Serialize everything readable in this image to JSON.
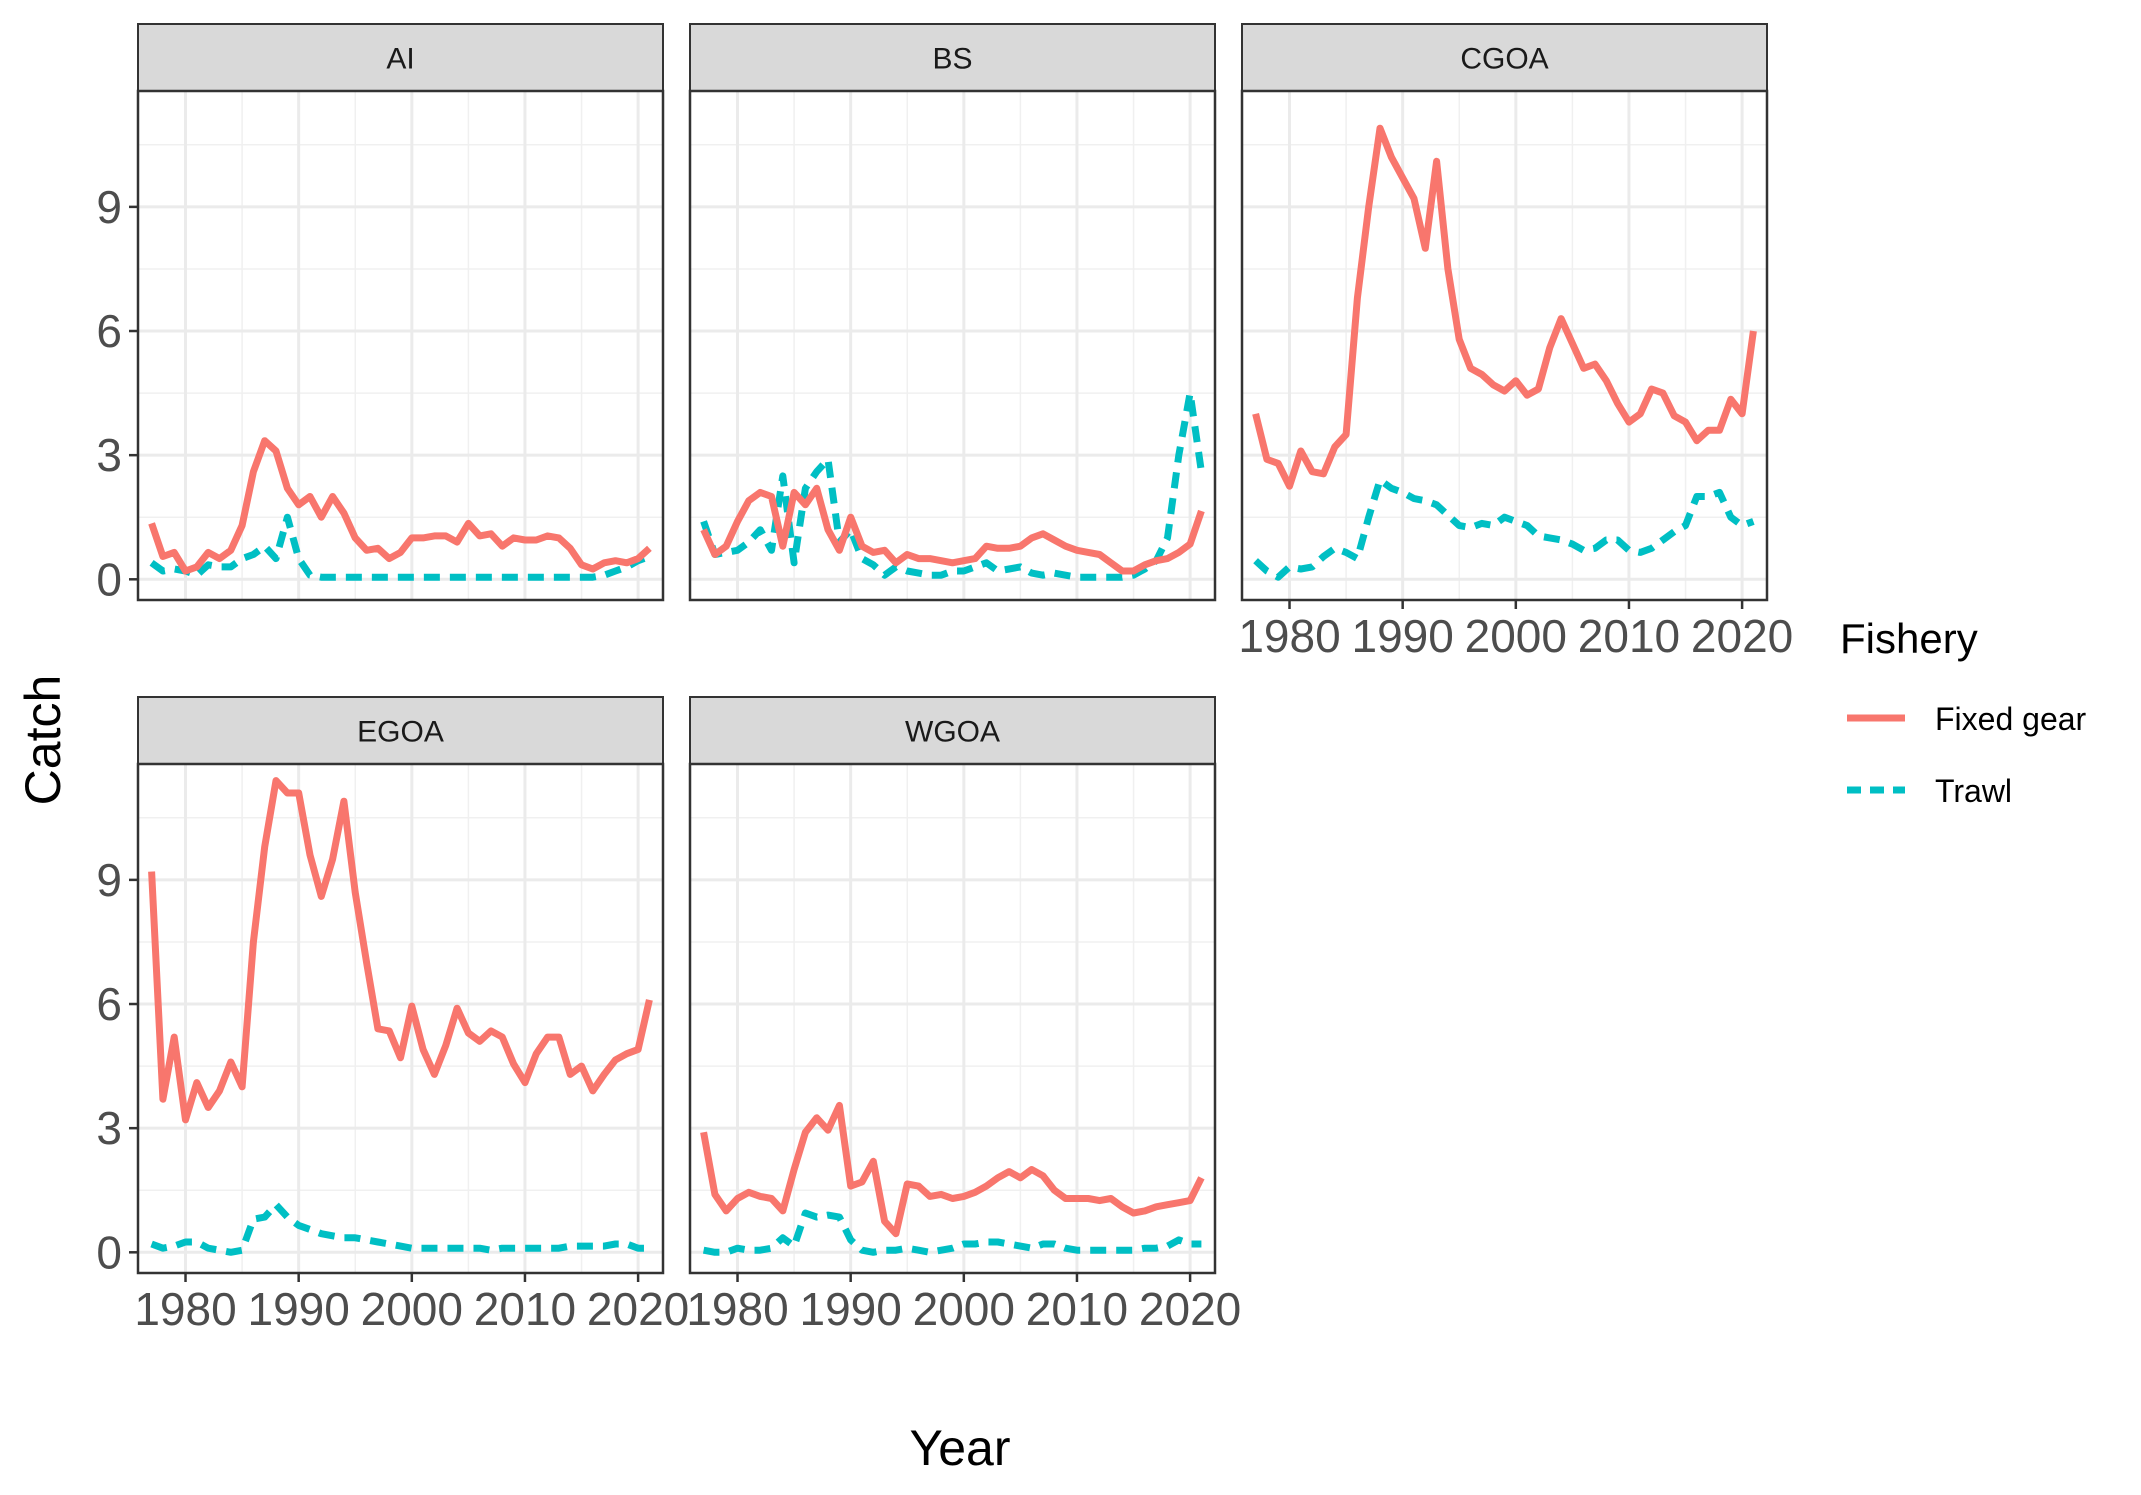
{
  "chart_data": {
    "type": "line",
    "layout": "facet-grid",
    "xlabel": "Year",
    "ylabel": "Catch",
    "xlim": [
      1975.8,
      2022.2
    ],
    "ylim": [
      -0.5,
      11.8
    ],
    "x_ticks": [
      1980,
      1990,
      2000,
      2010,
      2020
    ],
    "y_ticks": [
      0,
      3,
      6,
      9
    ],
    "grid": "on",
    "legend": {
      "title": "Fishery",
      "position": "right",
      "entries": [
        {
          "name": "Fixed gear",
          "color": "#F8766D",
          "dash": "solid"
        },
        {
          "name": "Trawl",
          "color": "#00BFC4",
          "dash": "dashed"
        }
      ]
    },
    "series_styles": {
      "fixed": {
        "color": "#F8766D",
        "dash": "solid"
      },
      "trawl": {
        "color": "#00BFC4",
        "dash": "dashed"
      }
    },
    "panels": [
      {
        "region": "AI",
        "x": [
          1977,
          1978,
          1979,
          1980,
          1981,
          1982,
          1983,
          1984,
          1985,
          1986,
          1987,
          1988,
          1989,
          1990,
          1991,
          1992,
          1993,
          1994,
          1995,
          1996,
          1997,
          1998,
          1999,
          2000,
          2001,
          2002,
          2003,
          2004,
          2005,
          2006,
          2007,
          2008,
          2009,
          2010,
          2011,
          2012,
          2013,
          2014,
          2015,
          2016,
          2017,
          2018,
          2019,
          2020,
          2021
        ],
        "fixed": [
          1.35,
          0.55,
          0.65,
          0.2,
          0.3,
          0.65,
          0.5,
          0.7,
          1.3,
          2.6,
          3.35,
          3.1,
          2.2,
          1.8,
          2.0,
          1.5,
          2.0,
          1.6,
          1.0,
          0.7,
          0.75,
          0.5,
          0.65,
          1.0,
          1.0,
          1.05,
          1.05,
          0.9,
          1.35,
          1.05,
          1.1,
          0.8,
          1.0,
          0.95,
          0.95,
          1.05,
          1.0,
          0.75,
          0.35,
          0.25,
          0.4,
          0.45,
          0.4,
          0.5,
          0.75
        ],
        "trawl": [
          0.4,
          0.2,
          0.25,
          0.2,
          0.1,
          0.35,
          0.3,
          0.3,
          0.5,
          0.6,
          0.8,
          0.5,
          1.5,
          0.5,
          0.1,
          0.05,
          0.05,
          0.05,
          0.05,
          0.05,
          0.05,
          0.05,
          0.05,
          0.05,
          0.05,
          0.05,
          0.05,
          0.05,
          0.05,
          0.05,
          0.05,
          0.05,
          0.05,
          0.05,
          0.05,
          0.05,
          0.05,
          0.05,
          0.05,
          0.05,
          0.1,
          0.2,
          0.3,
          0.45,
          0.55
        ]
      },
      {
        "region": "BS",
        "x": [
          1977,
          1978,
          1979,
          1980,
          1981,
          1982,
          1983,
          1984,
          1985,
          1986,
          1987,
          1988,
          1989,
          1990,
          1991,
          1992,
          1993,
          1994,
          1995,
          1996,
          1997,
          1998,
          1999,
          2000,
          2001,
          2002,
          2003,
          2004,
          2005,
          2006,
          2007,
          2008,
          2009,
          2010,
          2011,
          2012,
          2013,
          2014,
          2015,
          2016,
          2017,
          2018,
          2019,
          2020,
          2021
        ],
        "fixed": [
          1.2,
          0.6,
          0.8,
          1.4,
          1.9,
          2.1,
          2.0,
          0.8,
          2.1,
          1.8,
          2.2,
          1.2,
          0.7,
          1.5,
          0.8,
          0.65,
          0.7,
          0.4,
          0.6,
          0.5,
          0.5,
          0.45,
          0.4,
          0.45,
          0.5,
          0.8,
          0.75,
          0.75,
          0.8,
          1.0,
          1.1,
          0.95,
          0.8,
          0.7,
          0.65,
          0.6,
          0.4,
          0.2,
          0.2,
          0.35,
          0.45,
          0.5,
          0.65,
          0.85,
          1.65
        ],
        "trawl": [
          1.4,
          0.6,
          0.65,
          0.7,
          0.9,
          1.2,
          0.7,
          2.5,
          0.4,
          2.2,
          2.6,
          2.9,
          0.9,
          1.2,
          0.5,
          0.35,
          0.1,
          0.3,
          0.2,
          0.15,
          0.1,
          0.1,
          0.2,
          0.2,
          0.3,
          0.4,
          0.2,
          0.25,
          0.3,
          0.15,
          0.1,
          0.15,
          0.1,
          0.05,
          0.05,
          0.05,
          0.05,
          0.05,
          0.1,
          0.25,
          0.45,
          1.0,
          3.0,
          4.5,
          2.6
        ]
      },
      {
        "region": "CGOA",
        "x": [
          1977,
          1978,
          1979,
          1980,
          1981,
          1982,
          1983,
          1984,
          1985,
          1986,
          1987,
          1988,
          1989,
          1990,
          1991,
          1992,
          1993,
          1994,
          1995,
          1996,
          1997,
          1998,
          1999,
          2000,
          2001,
          2002,
          2003,
          2004,
          2005,
          2006,
          2007,
          2008,
          2009,
          2010,
          2011,
          2012,
          2013,
          2014,
          2015,
          2016,
          2017,
          2018,
          2019,
          2020,
          2021
        ],
        "fixed": [
          4.0,
          2.9,
          2.8,
          2.25,
          3.1,
          2.6,
          2.55,
          3.2,
          3.5,
          6.8,
          9.0,
          10.9,
          10.2,
          9.7,
          9.2,
          8.0,
          10.1,
          7.5,
          5.8,
          5.1,
          4.95,
          4.7,
          4.55,
          4.8,
          4.45,
          4.6,
          5.6,
          6.3,
          5.7,
          5.1,
          5.2,
          4.8,
          4.25,
          3.8,
          4.0,
          4.6,
          4.5,
          3.95,
          3.8,
          3.35,
          3.6,
          3.6,
          4.35,
          4.0,
          6.0
        ],
        "trawl": [
          0.45,
          0.2,
          0.05,
          0.3,
          0.25,
          0.3,
          0.55,
          0.75,
          0.65,
          0.5,
          1.5,
          2.4,
          2.2,
          2.1,
          1.95,
          1.9,
          1.8,
          1.55,
          1.3,
          1.25,
          1.35,
          1.3,
          1.5,
          1.4,
          1.3,
          1.05,
          1.0,
          0.95,
          0.85,
          0.7,
          0.75,
          0.95,
          0.95,
          0.7,
          0.65,
          0.75,
          0.95,
          1.15,
          1.3,
          2.0,
          2.0,
          2.1,
          1.5,
          1.3,
          1.4
        ]
      },
      {
        "region": "EGOA",
        "x": [
          1977,
          1978,
          1979,
          1980,
          1981,
          1982,
          1983,
          1984,
          1985,
          1986,
          1987,
          1988,
          1989,
          1990,
          1991,
          1992,
          1993,
          1994,
          1995,
          1996,
          1997,
          1998,
          1999,
          2000,
          2001,
          2002,
          2003,
          2004,
          2005,
          2006,
          2007,
          2008,
          2009,
          2010,
          2011,
          2012,
          2013,
          2014,
          2015,
          2016,
          2017,
          2018,
          2019,
          2020,
          2021
        ],
        "fixed": [
          9.2,
          3.7,
          5.2,
          3.2,
          4.1,
          3.5,
          3.9,
          4.6,
          4.0,
          7.5,
          9.8,
          11.4,
          11.1,
          11.1,
          9.6,
          8.6,
          9.5,
          10.9,
          8.7,
          7.0,
          5.4,
          5.35,
          4.7,
          5.95,
          4.9,
          4.3,
          5.0,
          5.9,
          5.3,
          5.1,
          5.35,
          5.2,
          4.55,
          4.1,
          4.8,
          5.2,
          5.2,
          4.3,
          4.5,
          3.9,
          4.3,
          4.65,
          4.8,
          4.9,
          6.1
        ],
        "trawl": [
          0.2,
          0.1,
          0.15,
          0.25,
          0.25,
          0.1,
          0.05,
          0.0,
          0.05,
          0.8,
          0.85,
          1.15,
          0.85,
          0.65,
          0.55,
          0.45,
          0.4,
          0.35,
          0.35,
          0.3,
          0.25,
          0.2,
          0.15,
          0.1,
          0.1,
          0.1,
          0.1,
          0.1,
          0.1,
          0.1,
          0.05,
          0.1,
          0.1,
          0.1,
          0.1,
          0.1,
          0.1,
          0.15,
          0.15,
          0.15,
          0.15,
          0.2,
          0.2,
          0.1,
          0.1
        ]
      },
      {
        "region": "WGOA",
        "x": [
          1977,
          1978,
          1979,
          1980,
          1981,
          1982,
          1983,
          1984,
          1985,
          1986,
          1987,
          1988,
          1989,
          1990,
          1991,
          1992,
          1993,
          1994,
          1995,
          1996,
          1997,
          1998,
          1999,
          2000,
          2001,
          2002,
          2003,
          2004,
          2005,
          2006,
          2007,
          2008,
          2009,
          2010,
          2011,
          2012,
          2013,
          2014,
          2015,
          2016,
          2017,
          2018,
          2019,
          2020,
          2021
        ],
        "fixed": [
          2.9,
          1.4,
          1.0,
          1.3,
          1.45,
          1.35,
          1.3,
          1.0,
          2.0,
          2.9,
          3.25,
          2.95,
          3.55,
          1.6,
          1.7,
          2.2,
          0.75,
          0.45,
          1.65,
          1.6,
          1.35,
          1.4,
          1.3,
          1.35,
          1.45,
          1.6,
          1.8,
          1.95,
          1.8,
          2.0,
          1.85,
          1.5,
          1.3,
          1.3,
          1.3,
          1.25,
          1.3,
          1.1,
          0.95,
          1.0,
          1.1,
          1.15,
          1.2,
          1.25,
          1.8
        ],
        "trawl": [
          0.05,
          0.0,
          0.0,
          0.1,
          0.05,
          0.05,
          0.1,
          0.35,
          0.15,
          0.95,
          0.85,
          0.9,
          0.85,
          0.3,
          0.05,
          0.0,
          0.05,
          0.05,
          0.1,
          0.05,
          0.0,
          0.05,
          0.1,
          0.2,
          0.2,
          0.25,
          0.25,
          0.2,
          0.15,
          0.1,
          0.2,
          0.2,
          0.1,
          0.05,
          0.05,
          0.05,
          0.05,
          0.05,
          0.05,
          0.1,
          0.1,
          0.15,
          0.3,
          0.2,
          0.2
        ]
      }
    ]
  }
}
